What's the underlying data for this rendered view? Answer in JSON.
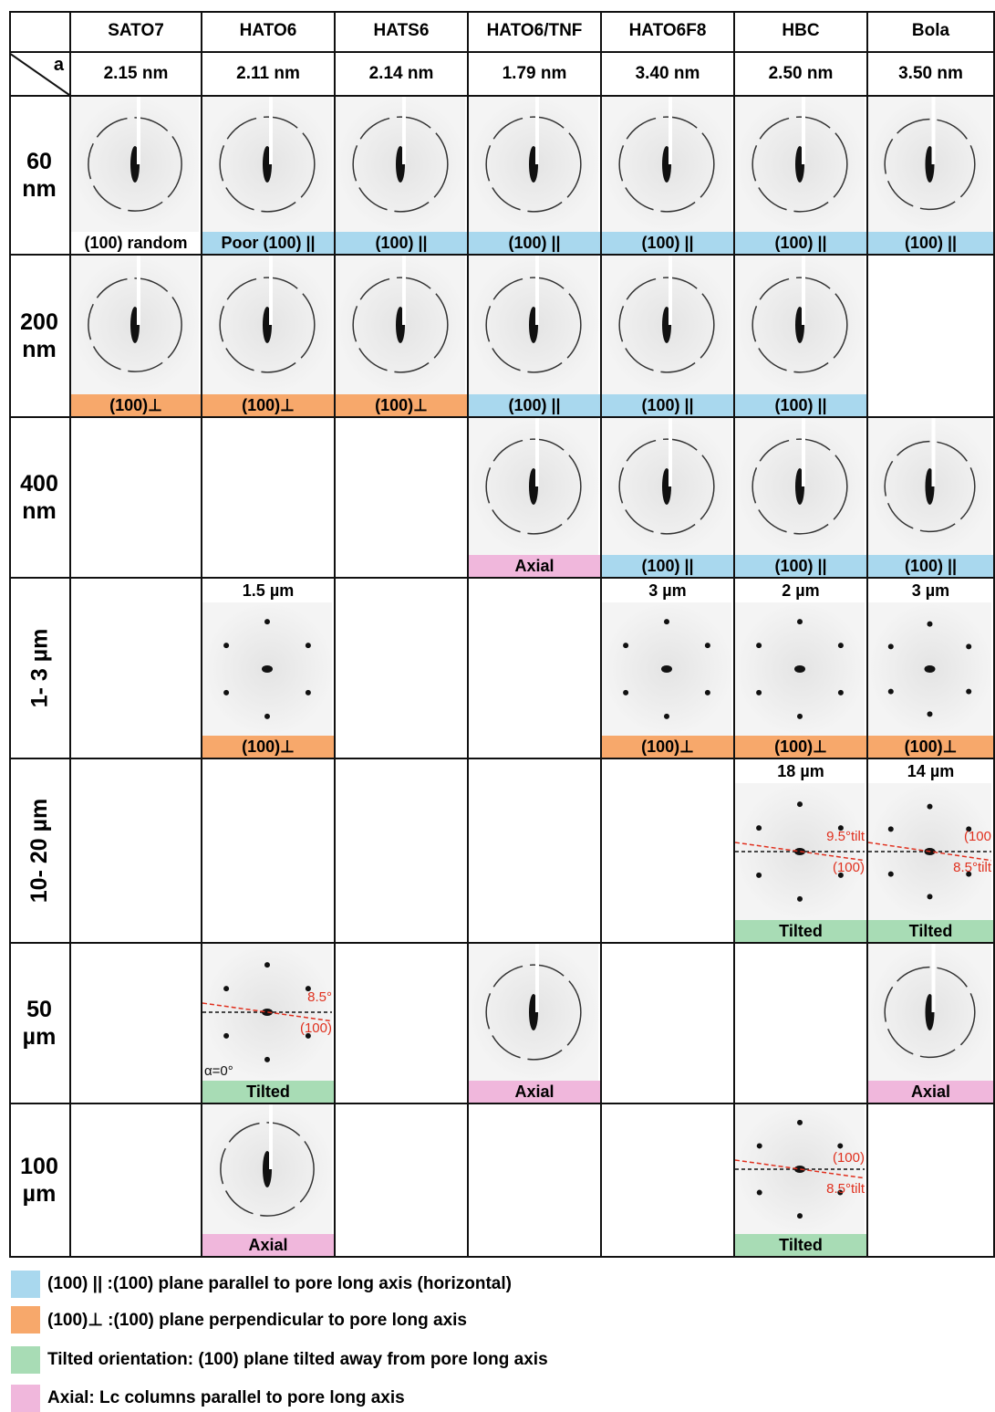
{
  "corner": "a",
  "columns": [
    "SATO7",
    "HATO6",
    "HATS6",
    "HATO6/TNF",
    "HATO6F8",
    "HBC",
    "Bola"
  ],
  "spacings": [
    "2.15 nm",
    "2.11 nm",
    "2.14 nm",
    "1.79 nm",
    "3.40 nm",
    "2.50 nm",
    "3.50 nm"
  ],
  "rows": [
    {
      "label": "60 nm",
      "cells": [
        {
          "label": "(100) random",
          "color": "#ffffff"
        },
        {
          "label": "Poor (100) ||",
          "color": "#a9d8ee"
        },
        {
          "label": "(100) ||",
          "color": "#a9d8ee"
        },
        {
          "label": "(100) ||",
          "color": "#a9d8ee"
        },
        {
          "label": "(100) ||",
          "color": "#a9d8ee"
        },
        {
          "label": "(100) ||",
          "color": "#a9d8ee"
        },
        {
          "label": "(100) ||",
          "color": "#a9d8ee"
        }
      ]
    },
    {
      "label": "200 nm",
      "cells": [
        {
          "label": "(100)⊥",
          "color": "#f7a86b"
        },
        {
          "label": "(100)⊥",
          "color": "#f7a86b"
        },
        {
          "label": "(100)⊥",
          "color": "#f7a86b"
        },
        {
          "label": "(100) ||",
          "color": "#a9d8ee"
        },
        {
          "label": "(100) ||",
          "color": "#a9d8ee"
        },
        {
          "label": "(100) ||",
          "color": "#a9d8ee"
        },
        null
      ]
    },
    {
      "label": "400 nm",
      "cells": [
        null,
        null,
        null,
        {
          "label": "Axial",
          "color": "#f0b7dc"
        },
        {
          "label": "(100) ||",
          "color": "#a9d8ee"
        },
        {
          "label": "(100) ||",
          "color": "#a9d8ee"
        },
        {
          "label": "(100) ||",
          "color": "#a9d8ee"
        }
      ]
    },
    {
      "label": "1- 3 µm",
      "cells": [
        null,
        {
          "size": "1.5 µm",
          "label": "(100)⊥",
          "color": "#f7a86b"
        },
        null,
        null,
        {
          "size": "3 µm",
          "label": "(100)⊥",
          "color": "#f7a86b"
        },
        {
          "size": "2 µm",
          "label": "(100)⊥",
          "color": "#f7a86b"
        },
        {
          "size": "3 µm",
          "label": "(100)⊥",
          "color": "#f7a86b"
        }
      ]
    },
    {
      "label": "10- 20 µm",
      "cells": [
        null,
        null,
        null,
        null,
        null,
        {
          "size": "18 µm",
          "label": "Tilted",
          "color": "#a8dcb5",
          "annotations": [
            "9.5°tilt",
            "(100)"
          ]
        },
        {
          "size": "14 µm",
          "label": "Tilted",
          "color": "#a8dcb5",
          "annotations": [
            "(100",
            "8.5°tilt"
          ]
        }
      ]
    },
    {
      "label": "50 µm",
      "cells": [
        null,
        {
          "label": "Tilted",
          "color": "#a8dcb5",
          "annotations": [
            "8.5°",
            "(100)",
            "α=0°"
          ]
        },
        null,
        {
          "label": "Axial",
          "color": "#f0b7dc"
        },
        null,
        null,
        {
          "label": "Axial",
          "color": "#f0b7dc"
        }
      ]
    },
    {
      "label": "100 µm",
      "cells": [
        null,
        {
          "label": "Axial",
          "color": "#f0b7dc"
        },
        null,
        null,
        null,
        {
          "label": "Tilted",
          "color": "#a8dcb5",
          "annotations": [
            "(100)",
            "8.5°tilt"
          ]
        },
        null
      ]
    }
  ],
  "legend": [
    {
      "color": "#a9d8ee",
      "text": "(100) || :(100) plane parallel to pore long axis (horizontal)"
    },
    {
      "color": "#f7a86b",
      "text": "(100)⊥ :(100) plane perpendicular to pore long axis"
    },
    {
      "color": "#a8dcb5",
      "text": "Tilted orientation: (100) plane tilted away from pore long axis"
    },
    {
      "color": "#f0b7dc",
      "text": "Axial: Lc columns parallel to pore long axis"
    }
  ]
}
